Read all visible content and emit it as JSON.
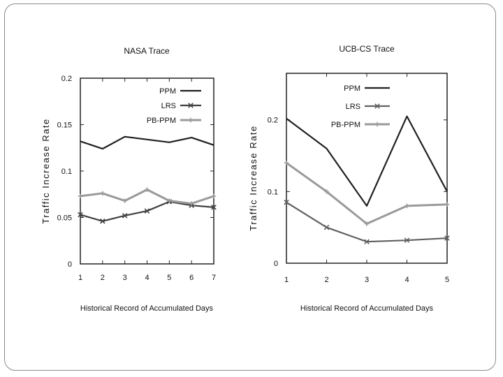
{
  "chart_data": [
    {
      "type": "line",
      "title": "NASA Trace",
      "xlabel": "Historical Record of Accumulated Days",
      "ylabel": "Traffic Increase Rate",
      "x": [
        1,
        2,
        3,
        4,
        5,
        6,
        7
      ],
      "xticks": [
        "1",
        "2",
        "3",
        "4",
        "5",
        "6",
        "7"
      ],
      "yticks": [
        "0",
        "0.05",
        "0.1",
        "0.15",
        "0.2"
      ],
      "ytick_values": [
        0,
        0.05,
        0.1,
        0.15,
        0.2
      ],
      "ylim": [
        0,
        0.2
      ],
      "legend_position": "top-right",
      "series": [
        {
          "name": "PPM",
          "values": [
            0.132,
            0.124,
            0.137,
            0.134,
            0.131,
            0.136,
            0.128
          ],
          "color": "#202020"
        },
        {
          "name": "LRS",
          "values": [
            0.053,
            0.046,
            0.052,
            0.057,
            0.067,
            0.063,
            0.061
          ],
          "color": "#404040"
        },
        {
          "name": "PB-PPM",
          "values": [
            0.073,
            0.076,
            0.068,
            0.08,
            0.068,
            0.065,
            0.073
          ],
          "color": "#9a9a9a"
        }
      ]
    },
    {
      "type": "line",
      "title": "UCB-CS Trace",
      "xlabel": "Historical Record of Accumulated Days",
      "ylabel": "Traffic Increase Rate",
      "x": [
        1,
        2,
        3,
        4,
        5
      ],
      "xticks": [
        "1",
        "2",
        "3",
        "4",
        "5"
      ],
      "yticks": [
        "0",
        "0.1",
        "0.2"
      ],
      "ytick_values": [
        0,
        0.1,
        0.2
      ],
      "ylim": [
        0,
        0.265
      ],
      "legend_position": "top-right",
      "series": [
        {
          "name": "PPM",
          "values": [
            0.202,
            0.16,
            0.08,
            0.205,
            0.1
          ],
          "color": "#202020"
        },
        {
          "name": "LRS",
          "values": [
            0.085,
            0.05,
            0.03,
            0.032,
            0.035
          ],
          "color": "#606060"
        },
        {
          "name": "PB-PPM",
          "values": [
            0.14,
            0.1,
            0.055,
            0.08,
            0.082
          ],
          "color": "#9a9a9a"
        }
      ]
    }
  ]
}
